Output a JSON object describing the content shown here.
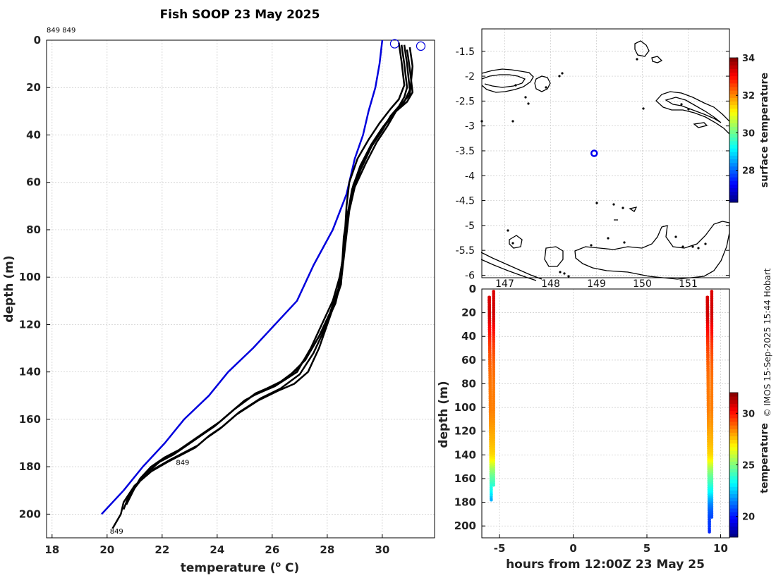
{
  "title": "Fish SOOP 23 May 2025",
  "id_note": "849 849",
  "credit": "© IMOS 15-Sep-2025 15:44 Hobart",
  "chart_data": [
    {
      "type": "line",
      "name": "profile",
      "xlabel": "temperature (",
      "xlabel_sup": "o",
      "xlabel_tail": " C)",
      "ylabel": "depth (m)",
      "xlim": [
        17.8,
        31.9
      ],
      "ylim": [
        210,
        0
      ],
      "xticks": [
        "18",
        "20",
        "22",
        "24",
        "26",
        "28",
        "30"
      ],
      "yticks": [
        "0",
        "20",
        "40",
        "60",
        "80",
        "100",
        "120",
        "140",
        "160",
        "180",
        "200"
      ],
      "labels": [
        {
          "text": "849",
          "x": 22.5,
          "y": 178
        },
        {
          "text": "849",
          "x": 20.1,
          "y": 207
        }
      ],
      "surface_markers": [
        {
          "x": 30.45,
          "y": 1.5
        },
        {
          "x": 31.4,
          "y": 2.5
        }
      ],
      "series": [
        {
          "name": "climatology",
          "color": "#0000dd",
          "x": [
            30.0,
            29.9,
            29.75,
            29.5,
            29.3,
            29.0,
            28.7,
            28.2,
            27.5,
            26.9,
            26.1,
            25.3,
            24.4,
            23.7,
            22.8,
            22.1,
            21.3,
            20.6,
            19.8
          ],
          "y": [
            0,
            10,
            20,
            30,
            40,
            50,
            65,
            80,
            95,
            110,
            120,
            130,
            140,
            150,
            160,
            170,
            180,
            190,
            200
          ]
        },
        {
          "name": "cast-1",
          "color": "#000000",
          "x": [
            30.7,
            30.8,
            30.9,
            30.8,
            30.6,
            30.3,
            30.0,
            29.6,
            29.2,
            28.9,
            28.7,
            28.6,
            28.55,
            28.5,
            28.3,
            28.0,
            27.7,
            27.3,
            26.8,
            26.2,
            25.5,
            24.7,
            24.1,
            23.6,
            23.2,
            22.7,
            22.2,
            21.6,
            21.0,
            20.6,
            20.5,
            20.2
          ],
          "y": [
            2,
            10,
            20,
            24,
            28,
            32,
            38,
            45,
            55,
            65,
            75,
            85,
            95,
            103,
            110,
            120,
            130,
            140,
            145,
            148,
            152,
            158,
            164,
            168,
            172,
            175,
            178,
            182,
            188,
            195,
            200,
            206
          ]
        },
        {
          "name": "cast-2",
          "color": "#000000",
          "x": [
            30.9,
            31.0,
            31.1,
            30.9,
            30.5,
            30.2,
            29.8,
            29.4,
            29.0,
            28.8,
            28.7,
            28.6,
            28.5,
            28.2,
            27.9,
            27.5,
            27.0,
            26.3,
            25.6,
            24.8,
            24.2,
            23.7,
            23.3,
            22.8,
            22.3,
            21.7,
            21.2,
            20.8,
            20.6
          ],
          "y": [
            4,
            12,
            22,
            26,
            30,
            36,
            43,
            52,
            62,
            72,
            82,
            92,
            102,
            112,
            122,
            132,
            141,
            147,
            151,
            157,
            163,
            167,
            171,
            174,
            177,
            181,
            186,
            192,
            198
          ]
        },
        {
          "name": "cast-3",
          "color": "#000000",
          "x": [
            31.0,
            31.1,
            31.0,
            30.7,
            30.4,
            30.0,
            29.6,
            29.2,
            28.9,
            28.75,
            28.6,
            28.55,
            28.4,
            28.1,
            27.7,
            27.2,
            26.5,
            25.8,
            25.0,
            24.4,
            23.9,
            23.4,
            22.9,
            22.4,
            21.9,
            21.4,
            21.0,
            20.7
          ],
          "y": [
            3,
            11,
            23,
            27,
            31,
            37,
            44,
            53,
            63,
            73,
            83,
            93,
            105,
            115,
            125,
            135,
            143,
            147,
            152,
            158,
            163,
            167,
            171,
            175,
            178,
            183,
            189,
            196
          ]
        },
        {
          "name": "cast-4",
          "color": "#000000",
          "x": [
            30.6,
            30.7,
            30.8,
            30.6,
            30.3,
            29.9,
            29.5,
            29.1,
            28.8,
            28.7,
            28.65,
            28.6,
            28.45,
            28.2,
            27.8,
            27.4,
            26.9,
            26.1,
            25.3,
            24.6,
            24.0,
            23.5,
            23.0,
            22.5,
            22.0,
            21.5,
            21.1,
            20.8
          ],
          "y": [
            1,
            9,
            19,
            25,
            29,
            35,
            42,
            50,
            60,
            70,
            80,
            90,
            100,
            110,
            120,
            130,
            140,
            146,
            150,
            156,
            162,
            166,
            170,
            174,
            177,
            182,
            187,
            193
          ]
        },
        {
          "name": "cast-5",
          "color": "#000000",
          "x": [
            30.8,
            30.9,
            31.0,
            30.8,
            30.5,
            30.1,
            29.7,
            29.3,
            28.95,
            28.8,
            28.7,
            28.6,
            28.5,
            28.3,
            27.9,
            27.4,
            26.9,
            26.2,
            25.4,
            24.7,
            24.1,
            23.6,
            23.1,
            22.6,
            22.1,
            21.6,
            21.2,
            20.9
          ],
          "y": [
            2,
            10,
            21,
            26,
            30,
            36,
            43,
            51,
            61,
            71,
            81,
            91,
            101,
            111,
            121,
            131,
            139,
            145,
            149,
            155,
            161,
            165,
            169,
            173,
            176,
            180,
            185,
            191
          ]
        }
      ]
    },
    {
      "type": "map",
      "name": "location",
      "xlim": [
        146.5,
        151.9
      ],
      "ylim": [
        -6.05,
        -1.05
      ],
      "yticks": [
        "-1.5",
        "-2",
        "-2.5",
        "-3",
        "-3.5",
        "-4",
        "-4.5",
        "-5",
        "-5.5",
        "-6"
      ],
      "xticks": [
        "147",
        "148",
        "149",
        "150",
        "151"
      ],
      "position": {
        "lon": 148.95,
        "lat": -3.55
      },
      "colorbar_title": "surface temperature",
      "colorbar_ticks": [
        "28",
        "30",
        "32",
        "34"
      ],
      "colorbar_range": [
        26.3,
        34.0
      ]
    },
    {
      "type": "scatter",
      "name": "time-depth",
      "xlabel": "hours from 12:00Z 23 May 25",
      "ylabel": "depth (m)",
      "xlim": [
        -6.2,
        10.6
      ],
      "ylim": [
        210,
        0
      ],
      "xticks": [
        "-5",
        "0",
        "5",
        "10"
      ],
      "yticks": [
        "0",
        "20",
        "40",
        "60",
        "80",
        "100",
        "120",
        "140",
        "160",
        "180",
        "200"
      ],
      "colorbar_title": "temperature",
      "colorbar_ticks": [
        "20",
        "25",
        "30"
      ],
      "colorbar_range": [
        18,
        32
      ],
      "groups": [
        {
          "name": "group-1",
          "hours": [
            -5.7,
            -5.6,
            -5.5,
            -5.4
          ],
          "max_depth": 178
        },
        {
          "name": "group-2",
          "hours": [
            9.1,
            9.2,
            9.3,
            9.4
          ],
          "max_depth": 205
        }
      ]
    }
  ]
}
